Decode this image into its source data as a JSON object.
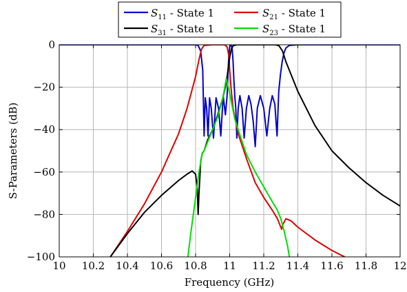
{
  "chart_data": {
    "type": "line",
    "xlabel": "Frequency (GHz)",
    "ylabel": "S-Parameters (dB)",
    "xlim": [
      10,
      12
    ],
    "ylim": [
      -100,
      0
    ],
    "x_ticks": [
      10,
      10.2,
      10.4,
      10.6,
      10.8,
      11,
      11.2,
      11.4,
      11.6,
      11.8,
      12
    ],
    "x_tick_labels": [
      "10",
      "10.2",
      "10.4",
      "10.6",
      "10.8",
      "11",
      "11.2",
      "11.4",
      "11.6",
      "11.8",
      "12"
    ],
    "y_ticks": [
      -100,
      -80,
      -60,
      -40,
      -20,
      0
    ],
    "y_tick_labels": [
      "−100",
      "−80",
      "−60",
      "−40",
      "−20",
      "0"
    ],
    "grid": true,
    "legend_position": "top-center",
    "series": [
      {
        "name": "S11 - State 1",
        "legend_main": "S",
        "legend_sub": "11",
        "legend_suffix": " - State 1",
        "color": "#0000cc",
        "points": [
          [
            10,
            0
          ],
          [
            10.8,
            0
          ],
          [
            10.815,
            -0.3
          ],
          [
            10.83,
            -3
          ],
          [
            10.842,
            -12
          ],
          [
            10.85,
            -43
          ],
          [
            10.857,
            -25
          ],
          [
            10.865,
            -30
          ],
          [
            10.873,
            -43
          ],
          [
            10.882,
            -25
          ],
          [
            10.892,
            -30
          ],
          [
            10.905,
            -44
          ],
          [
            10.92,
            -25
          ],
          [
            10.935,
            -30
          ],
          [
            10.948,
            -43
          ],
          [
            10.962,
            -24
          ],
          [
            10.975,
            -33
          ],
          [
            10.985,
            -24
          ],
          [
            10.99,
            -14
          ],
          [
            10.995,
            -5
          ],
          [
            11.0,
            -1
          ],
          [
            11.005,
            -0.2
          ],
          [
            11.01,
            -0.5
          ],
          [
            11.015,
            -2
          ],
          [
            11.02,
            -8
          ],
          [
            11.025,
            -17
          ],
          [
            11.03,
            -24
          ],
          [
            11.036,
            -30
          ],
          [
            11.042,
            -44
          ],
          [
            11.05,
            -30
          ],
          [
            11.06,
            -24
          ],
          [
            11.073,
            -30
          ],
          [
            11.085,
            -44
          ],
          [
            11.098,
            -30
          ],
          [
            11.112,
            -24
          ],
          [
            11.125,
            -28
          ],
          [
            11.138,
            -36
          ],
          [
            11.15,
            -48
          ],
          [
            11.162,
            -30
          ],
          [
            11.18,
            -24
          ],
          [
            11.2,
            -30
          ],
          [
            11.218,
            -43
          ],
          [
            11.235,
            -30
          ],
          [
            11.25,
            -24
          ],
          [
            11.265,
            -28
          ],
          [
            11.278,
            -43
          ],
          [
            11.288,
            -22
          ],
          [
            11.298,
            -14
          ],
          [
            11.308,
            -8
          ],
          [
            11.318,
            -4
          ],
          [
            11.33,
            -1.5
          ],
          [
            11.35,
            -0.3
          ],
          [
            11.4,
            0
          ],
          [
            12,
            0
          ]
        ]
      },
      {
        "name": "S21 - State 1",
        "legend_main": "S",
        "legend_sub": "21",
        "legend_suffix": " - State 1",
        "color": "#dd0000",
        "points": [
          [
            10.3,
            -100
          ],
          [
            10.4,
            -88
          ],
          [
            10.5,
            -75
          ],
          [
            10.6,
            -60
          ],
          [
            10.7,
            -42
          ],
          [
            10.75,
            -30
          ],
          [
            10.8,
            -15
          ],
          [
            10.82,
            -7
          ],
          [
            10.835,
            -2
          ],
          [
            10.85,
            -0.3
          ],
          [
            10.9,
            0
          ],
          [
            10.97,
            0
          ],
          [
            10.985,
            -1
          ],
          [
            10.995,
            -5
          ],
          [
            11.0,
            -12
          ],
          [
            11.01,
            -22
          ],
          [
            11.02,
            -30
          ],
          [
            11.05,
            -42
          ],
          [
            11.1,
            -54
          ],
          [
            11.15,
            -65
          ],
          [
            11.2,
            -72
          ],
          [
            11.25,
            -78
          ],
          [
            11.28,
            -82
          ],
          [
            11.3,
            -86
          ],
          [
            11.305,
            -87
          ],
          [
            11.31,
            -85
          ],
          [
            11.33,
            -82
          ],
          [
            11.36,
            -83
          ],
          [
            11.4,
            -86
          ],
          [
            11.5,
            -92
          ],
          [
            11.6,
            -97
          ],
          [
            11.7,
            -101
          ]
        ]
      },
      {
        "name": "S31 - State 1",
        "legend_main": "S",
        "legend_sub": "31",
        "legend_suffix": " - State 1",
        "color": "#000000",
        "points": [
          [
            10.3,
            -100
          ],
          [
            10.4,
            -89
          ],
          [
            10.5,
            -79
          ],
          [
            10.6,
            -71
          ],
          [
            10.7,
            -64
          ],
          [
            10.75,
            -61
          ],
          [
            10.78,
            -59.5
          ],
          [
            10.8,
            -61
          ],
          [
            10.81,
            -68
          ],
          [
            10.815,
            -80
          ],
          [
            10.82,
            -70
          ],
          [
            10.83,
            -55
          ],
          [
            10.84,
            -51
          ],
          [
            10.85,
            -50
          ],
          [
            10.87,
            -45
          ],
          [
            10.9,
            -40
          ],
          [
            10.93,
            -33
          ],
          [
            10.96,
            -25
          ],
          [
            10.98,
            -18
          ],
          [
            10.99,
            -12
          ],
          [
            11.0,
            -6
          ],
          [
            11.01,
            -2
          ],
          [
            11.02,
            -0.5
          ],
          [
            11.04,
            0
          ],
          [
            11.27,
            0
          ],
          [
            11.29,
            -0.5
          ],
          [
            11.31,
            -3
          ],
          [
            11.33,
            -8
          ],
          [
            11.36,
            -14
          ],
          [
            11.4,
            -22
          ],
          [
            11.5,
            -38
          ],
          [
            11.6,
            -50
          ],
          [
            11.7,
            -58
          ],
          [
            11.8,
            -65
          ],
          [
            11.9,
            -71
          ],
          [
            12.0,
            -76
          ]
        ]
      },
      {
        "name": "S23 - State 1",
        "legend_main": "S",
        "legend_sub": "23",
        "legend_suffix": " - State 1",
        "color": "#00dd00",
        "points": [
          [
            10.755,
            -100
          ],
          [
            10.77,
            -90
          ],
          [
            10.79,
            -78
          ],
          [
            10.82,
            -60
          ],
          [
            10.84,
            -51
          ],
          [
            10.85,
            -50
          ],
          [
            10.87,
            -46
          ],
          [
            10.9,
            -40
          ],
          [
            10.93,
            -34
          ],
          [
            10.96,
            -25
          ],
          [
            10.98,
            -16
          ],
          [
            11.0,
            -23
          ],
          [
            11.03,
            -35
          ],
          [
            11.07,
            -45
          ],
          [
            11.1,
            -52
          ],
          [
            11.15,
            -60
          ],
          [
            11.2,
            -67
          ],
          [
            11.25,
            -74
          ],
          [
            11.28,
            -78
          ],
          [
            11.3,
            -82
          ],
          [
            11.32,
            -88
          ],
          [
            11.34,
            -95
          ],
          [
            11.35,
            -100
          ]
        ]
      }
    ]
  }
}
